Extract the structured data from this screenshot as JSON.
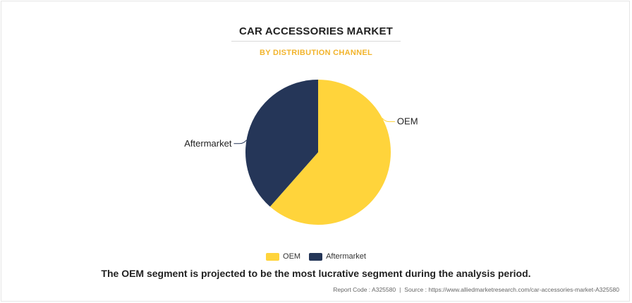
{
  "chart_data": {
    "type": "pie",
    "title": "CAR ACCESSORIES MARKET",
    "subtitle": "BY DISTRIBUTION CHANNEL",
    "slices": [
      {
        "name": "OEM",
        "value": 61.5,
        "color": "#ffd43b"
      },
      {
        "name": "Aftermarket",
        "value": 38.5,
        "color": "#253658"
      }
    ],
    "legend": [
      "OEM",
      "Aftermarket"
    ],
    "legend_position": "bottom"
  },
  "caption": "The OEM segment is projected to be the most lucrative segment during the analysis period.",
  "footer": {
    "report_code": "Report Code : A325580",
    "source": "Source : https://www.alliedmarketresearch.com/car-accessories-market-A325580"
  }
}
